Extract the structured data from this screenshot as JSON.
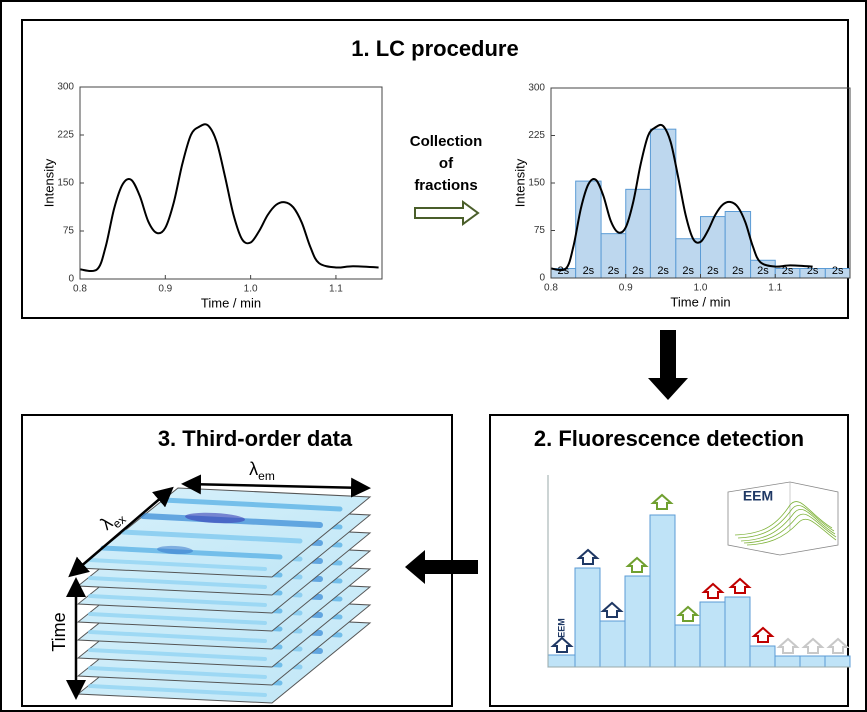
{
  "panels": {
    "lc": {
      "title": "1. LC procedure",
      "arrow_text": [
        "Collection",
        "of",
        "fractions"
      ]
    },
    "fluorescence": {
      "title": "2. Fluorescence detection",
      "eem_label": "EEM",
      "inset_label": "EEM"
    },
    "third_order": {
      "title": "3. Third-order data",
      "lambda_em": {
        "symbol": "λ",
        "sub": "em"
      },
      "lambda_ex": {
        "symbol": "λ",
        "sub": "ex"
      },
      "time_label": "Time"
    }
  },
  "chart_data": [
    {
      "type": "line",
      "color": "#000000",
      "x": [
        0.8,
        0.82,
        0.83,
        0.84,
        0.85,
        0.86,
        0.87,
        0.88,
        0.89,
        0.9,
        0.91,
        0.92,
        0.93,
        0.94,
        0.95,
        0.96,
        0.97,
        0.98,
        0.99,
        1.0,
        1.01,
        1.02,
        1.03,
        1.04,
        1.05,
        1.06,
        1.07,
        1.08,
        1.1,
        1.12,
        1.15
      ],
      "values": [
        15,
        15,
        50,
        110,
        148,
        155,
        130,
        90,
        72,
        80,
        120,
        180,
        225,
        238,
        240,
        215,
        160,
        100,
        62,
        57,
        75,
        100,
        116,
        120,
        112,
        88,
        50,
        25,
        18,
        20,
        18
      ],
      "xlim": [
        0.8,
        1.154
      ],
      "ylim": [
        0,
        300
      ],
      "xticks": [
        0.8,
        0.9,
        {
          "value": 1,
          "label": "1.0"
        },
        1.1
      ],
      "yticks": [
        0,
        75,
        150,
        225,
        300
      ],
      "xlabel": "Time / min",
      "ylabel": "Intensity"
    },
    {
      "type": "histogram",
      "color": "#bdd7ee",
      "bins": [
        0.8,
        0.833,
        0.867,
        0.9,
        0.933,
        0.967,
        1.0,
        1.033,
        1.067,
        1.1,
        1.133,
        1.167,
        1.2
      ],
      "values": [
        15,
        153,
        70,
        140,
        235,
        62,
        97,
        105,
        28,
        15,
        15,
        15
      ],
      "bar_labels": [
        "2s",
        "2s",
        "2s",
        "2s",
        "2s",
        "2s",
        "2s",
        "2s",
        "2s",
        "2s",
        "2s",
        "2s"
      ],
      "xlim": [
        0.8,
        1.2
      ],
      "ylim": [
        0,
        300
      ],
      "xticks": [
        0.8,
        0.9,
        {
          "value": 1,
          "label": "1.0"
        },
        1.1
      ],
      "yticks": [
        0,
        75,
        150,
        225,
        300
      ],
      "xlabel": "Time / min",
      "ylabel": "Intensity"
    }
  ]
}
